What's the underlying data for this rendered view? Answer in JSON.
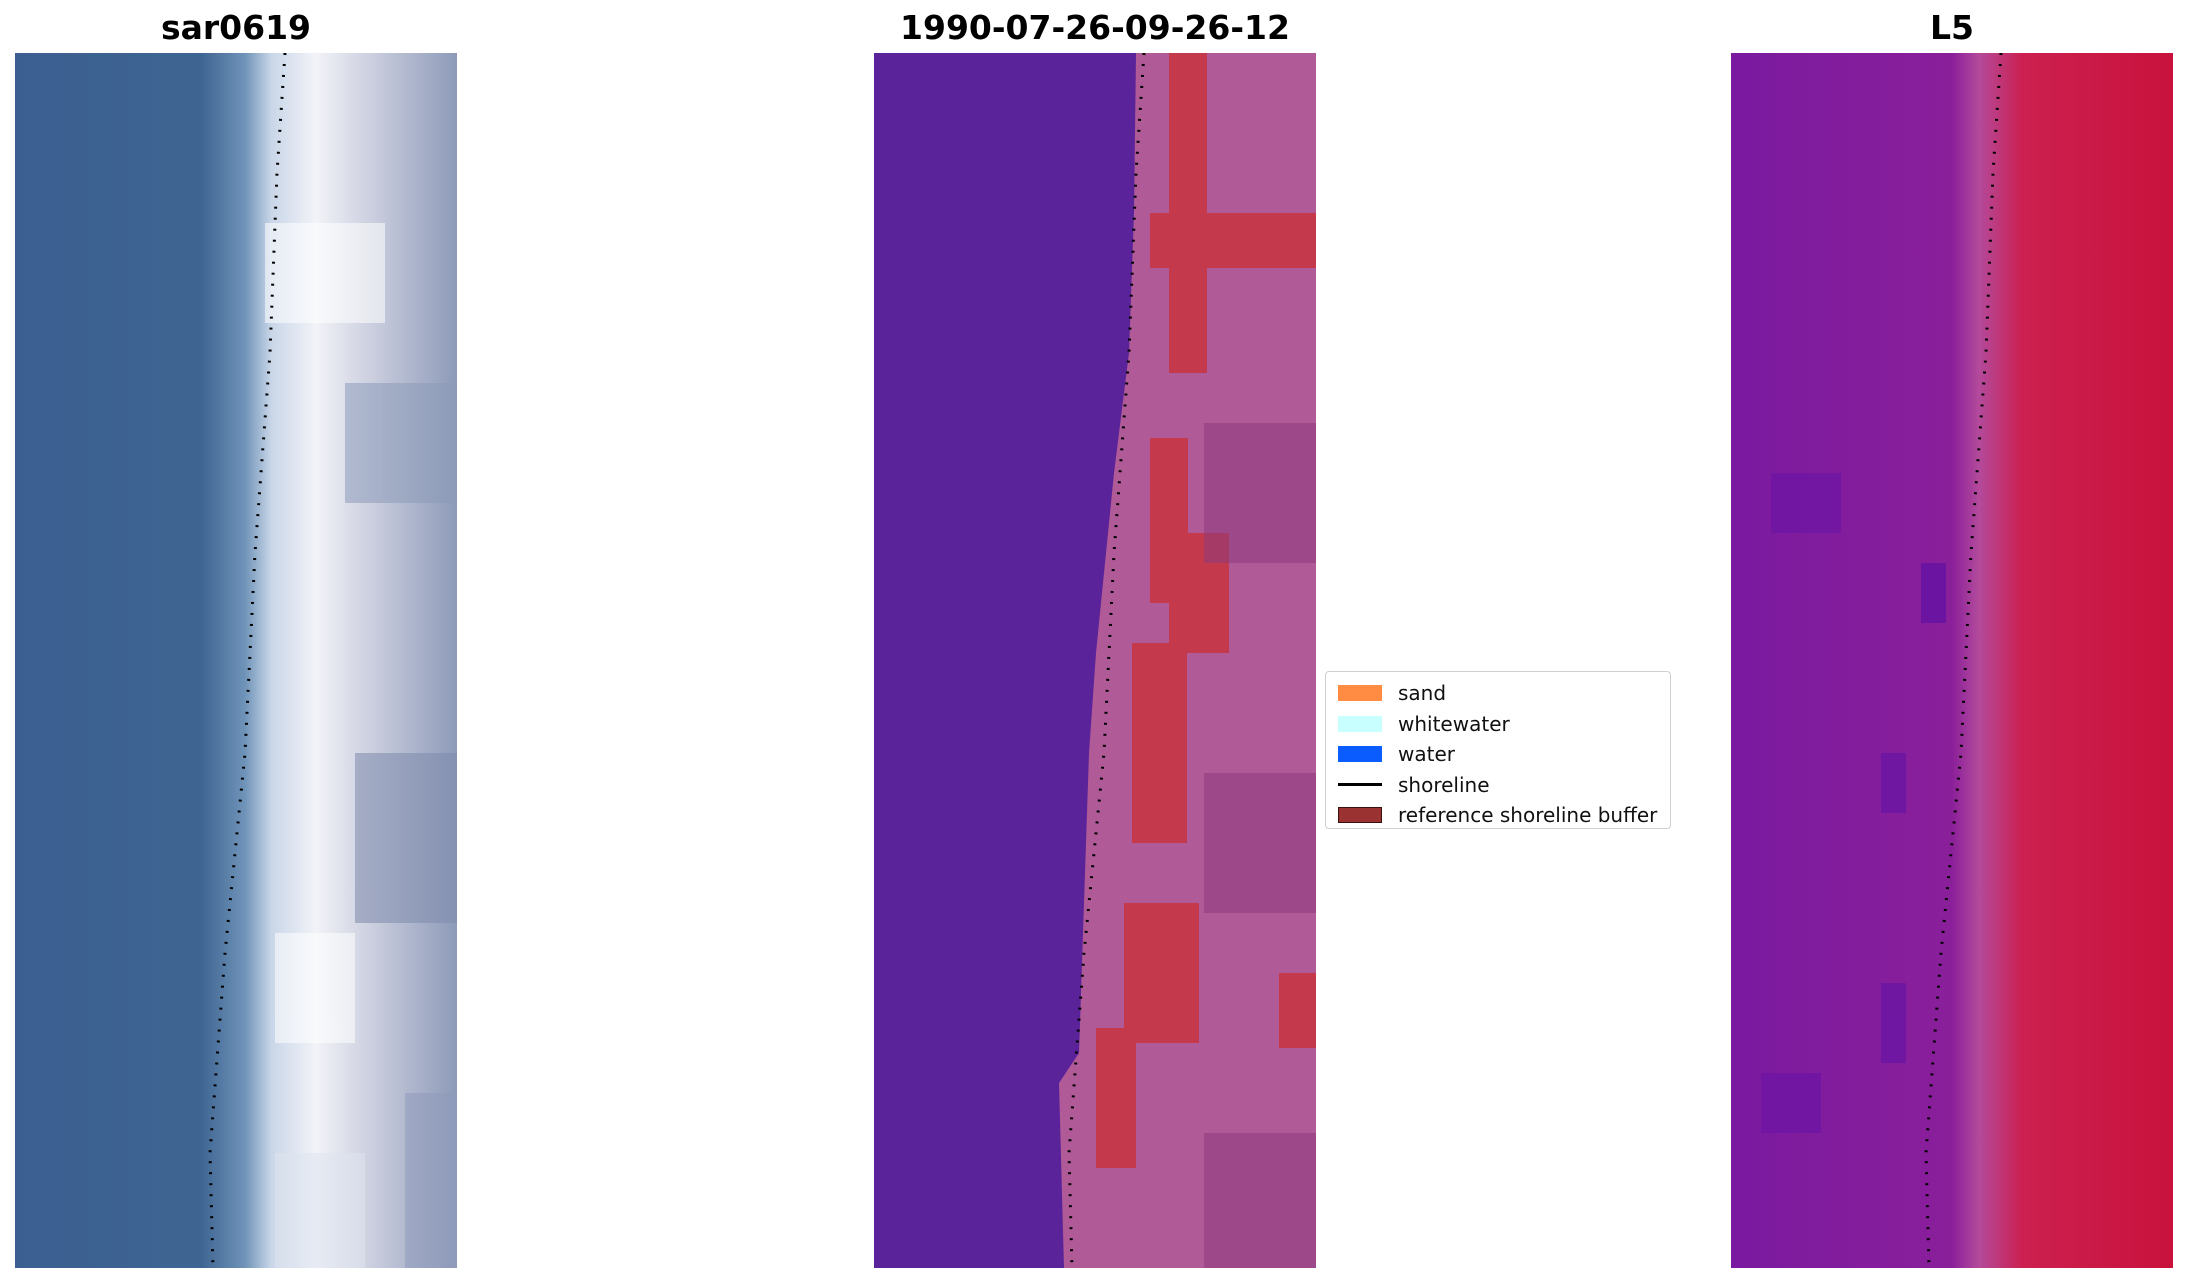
{
  "panels": [
    {
      "title": "sar0619",
      "icon": "rgb-image"
    },
    {
      "title": "1990-07-26-09-26-12",
      "icon": "classified-image"
    },
    {
      "title": "L5",
      "icon": "mndwi-image"
    }
  ],
  "legend": {
    "items": [
      {
        "label": "sand",
        "color": "#ff8c42"
      },
      {
        "label": "whitewater",
        "color": "#c8ffff"
      },
      {
        "label": "water",
        "color": "#0a5cff"
      },
      {
        "label": "shoreline",
        "color": "#000000"
      },
      {
        "label": "reference shoreline buffer",
        "color": "#9a3232"
      }
    ]
  },
  "colors": {
    "rgb_water": "#3b5f91",
    "rgb_sand": "#eef0f6",
    "class_water": "#5a2399",
    "class_beach": "#b05a98",
    "class_buffer": "#c43a4c",
    "index_water": "#7a1aa0",
    "index_land": "#c8123c"
  }
}
